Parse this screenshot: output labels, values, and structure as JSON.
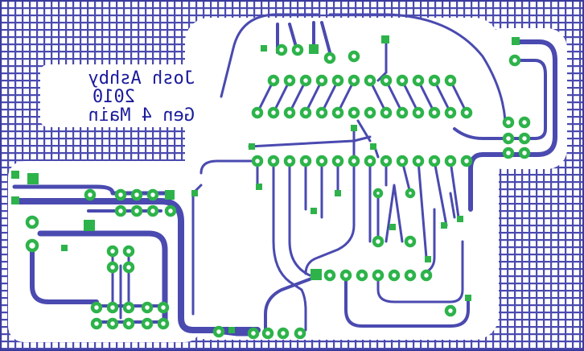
{
  "board": {
    "colors": {
      "copper": "#4a4ab0",
      "copper_dark": "#3a3a9c",
      "background": "#ffffff",
      "pad_ring": "#2db34a",
      "pad_hole": "#ffffff",
      "silkscreen": "#1a1a9c"
    }
  },
  "silkscreen": {
    "line1": "Josh Ashby",
    "line2": "2010",
    "line3": "Gen 4 Main",
    "mirrored": true
  }
}
